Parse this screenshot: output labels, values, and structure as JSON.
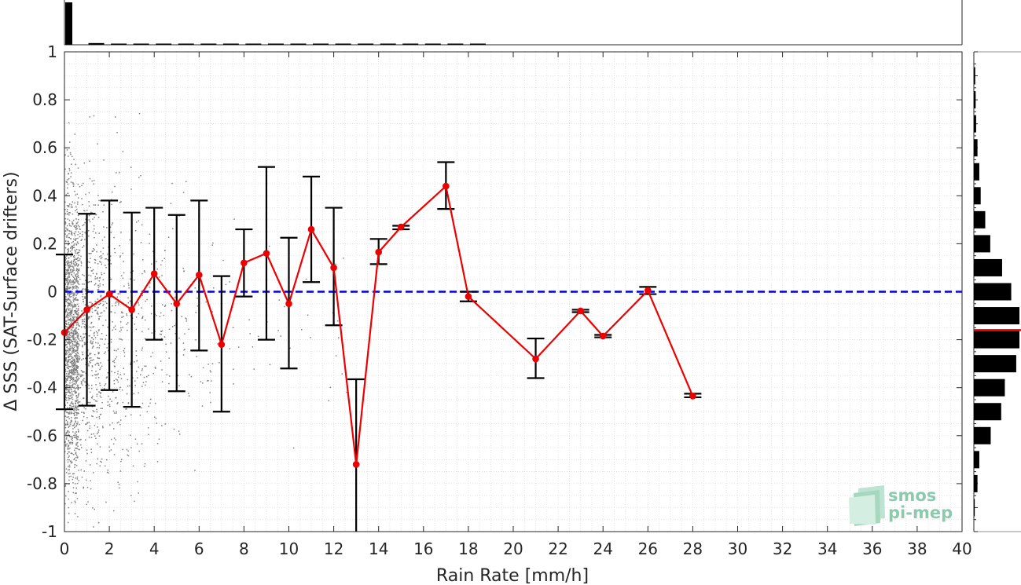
{
  "chart_data": {
    "type": "line",
    "xlabel": "Rain Rate [mm/h]",
    "ylabel": "Δ SSS (SAT-Surface drifters)",
    "xlim": [
      0,
      40
    ],
    "ylim": [
      -1,
      1
    ],
    "x_ticks": [
      "0",
      "2",
      "4",
      "6",
      "8",
      "10",
      "12",
      "14",
      "16",
      "18",
      "20",
      "22",
      "24",
      "26",
      "28",
      "30",
      "32",
      "34",
      "36",
      "38",
      "40"
    ],
    "y_ticks": [
      "-1",
      "-0.8",
      "-0.6",
      "-0.4",
      "-0.2",
      "0",
      "0.2",
      "0.4",
      "0.6",
      "0.8",
      "1"
    ],
    "grid": "on (major and minor, dotted)",
    "reference_line": {
      "y": 0,
      "style": "dashed",
      "color": "#0000dd"
    },
    "mean_series": {
      "color": "#ee0000",
      "points": [
        {
          "x": 0,
          "y": -0.17,
          "low": -0.49,
          "high": 0.155
        },
        {
          "x": 1,
          "y": -0.075,
          "low": -0.475,
          "high": 0.325
        },
        {
          "x": 2,
          "y": -0.01,
          "low": -0.41,
          "high": 0.38
        },
        {
          "x": 3,
          "y": -0.075,
          "low": -0.48,
          "high": 0.33
        },
        {
          "x": 4,
          "y": 0.075,
          "low": -0.2,
          "high": 0.35
        },
        {
          "x": 5,
          "y": -0.05,
          "low": -0.415,
          "high": 0.32
        },
        {
          "x": 6,
          "y": 0.07,
          "low": -0.245,
          "high": 0.38
        },
        {
          "x": 7,
          "y": -0.22,
          "low": -0.5,
          "high": 0.065
        },
        {
          "x": 8,
          "y": 0.12,
          "low": -0.02,
          "high": 0.26
        },
        {
          "x": 9,
          "y": 0.16,
          "low": -0.2,
          "high": 0.52
        },
        {
          "x": 10,
          "y": -0.05,
          "low": -0.32,
          "high": 0.225
        },
        {
          "x": 11,
          "y": 0.26,
          "low": 0.04,
          "high": 0.48
        },
        {
          "x": 12,
          "y": 0.1,
          "low": -0.14,
          "high": 0.35
        },
        {
          "x": 13,
          "y": -0.72,
          "low": -1.08,
          "high": -0.365
        },
        {
          "x": 14,
          "y": 0.165,
          "low": 0.115,
          "high": 0.22
        },
        {
          "x": 15,
          "y": 0.27,
          "low": 0.26,
          "high": 0.275
        },
        {
          "x": 17,
          "y": 0.44,
          "low": 0.345,
          "high": 0.54
        },
        {
          "x": 18,
          "y": -0.02,
          "low": -0.04,
          "high": 0.0
        },
        {
          "x": 21,
          "y": -0.28,
          "low": -0.36,
          "high": -0.195
        },
        {
          "x": 23,
          "y": -0.08,
          "low": -0.085,
          "high": -0.075
        },
        {
          "x": 24,
          "y": -0.185,
          "low": -0.19,
          "high": -0.18
        },
        {
          "x": 26,
          "y": 0.005,
          "low": -0.01,
          "high": 0.02
        },
        {
          "x": 28,
          "y": -0.435,
          "low": -0.44,
          "high": -0.425
        }
      ]
    },
    "scatter_color": "#808080",
    "top_histogram": {
      "bins": [
        0,
        1,
        2,
        3,
        4,
        5,
        6,
        7,
        8,
        9,
        10,
        11,
        12,
        13,
        14,
        15,
        16,
        17,
        18
      ],
      "heights": [
        1.0,
        0.04,
        0.02,
        0.015,
        0.01,
        0.01,
        0.008,
        0.006,
        0.005,
        0.004,
        0.004,
        0.003,
        0.003,
        0.002,
        0.002,
        0.002,
        0.002,
        0.002,
        0.002
      ]
    },
    "right_histogram": {
      "bin_centers": [
        0.9,
        0.8,
        0.7,
        0.6,
        0.5,
        0.4,
        0.3,
        0.2,
        0.1,
        0.0,
        -0.1,
        -0.2,
        -0.3,
        -0.4,
        -0.5,
        -0.6,
        -0.7,
        -0.8,
        -0.9
      ],
      "heights": [
        0.03,
        0.04,
        0.05,
        0.08,
        0.12,
        0.15,
        0.25,
        0.36,
        0.62,
        0.82,
        1.0,
        1.0,
        0.93,
        0.68,
        0.6,
        0.37,
        0.12,
        0.08,
        0.02
      ],
      "mean_marker": {
        "y": -0.16,
        "color": "#ee0000"
      }
    }
  },
  "logo": {
    "line1": "smos",
    "line2": "pi-mep",
    "color": "#8cc9ad"
  }
}
